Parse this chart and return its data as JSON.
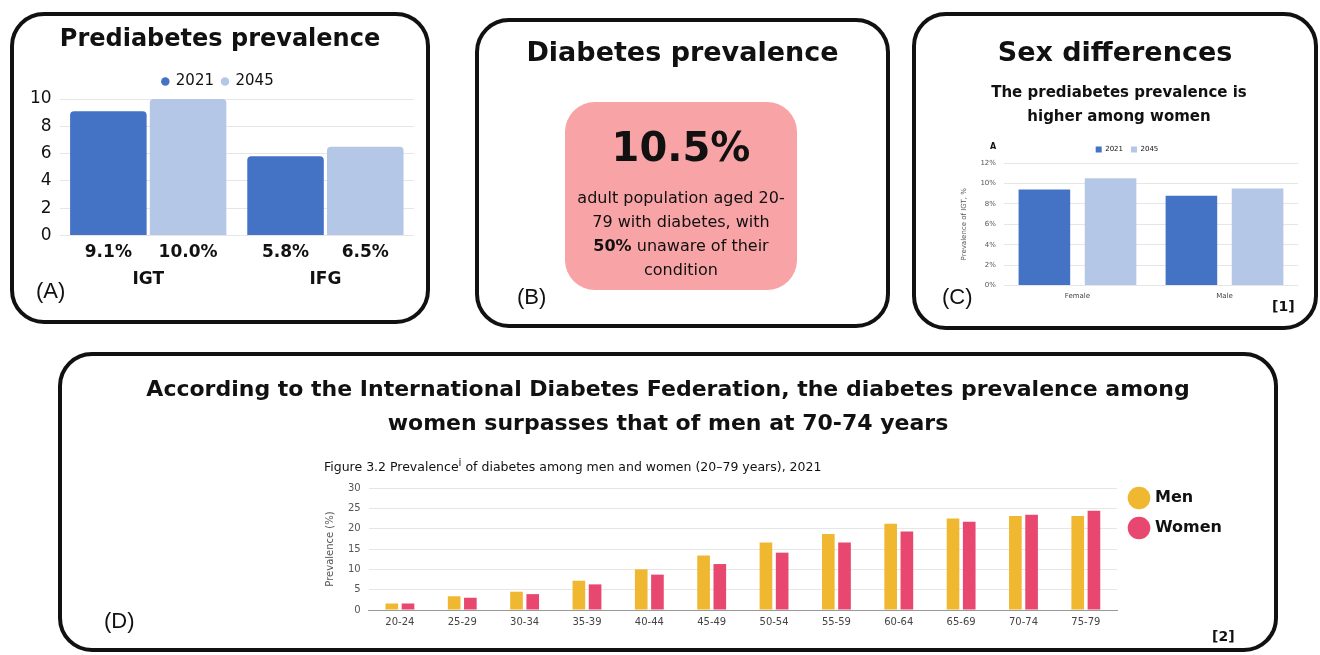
{
  "chart_data": [
    {
      "type": "bar",
      "title": "Prediabetes prevalence",
      "categories": [
        "IGT",
        "IFG"
      ],
      "series": [
        {
          "name": "2021",
          "color": "#4472c4",
          "values": [
            9.1,
            5.8
          ],
          "value_labels": [
            "9.1%",
            "5.8%"
          ]
        },
        {
          "name": "2045",
          "color": "#b4c7e7",
          "values": [
            10.0,
            6.5
          ],
          "value_labels": [
            "10.0%",
            "6.5%"
          ]
        }
      ],
      "ylim": [
        0,
        10
      ],
      "yticks": [
        0,
        2,
        4,
        6,
        8,
        10
      ],
      "grid": "y",
      "legend": "top",
      "annotations": [
        "(A)"
      ]
    },
    {
      "type": "other",
      "title": "Diabetes prevalence",
      "annotations": [
        "10.5%",
        "adult population aged 20-79 with diabetes, with",
        "50%",
        "unaware of their condition",
        "(B)"
      ]
    },
    {
      "type": "bar",
      "title": "Sex differences",
      "subtitle": "The prediabetes prevalence is higher among women",
      "ylabel": "Prevalence of IGT, %",
      "categories": [
        "Female",
        "Male"
      ],
      "series": [
        {
          "name": "2021",
          "color": "#4472c4",
          "values": [
            9.4,
            8.8
          ]
        },
        {
          "name": "2045",
          "color": "#b4c7e7",
          "values": [
            10.5,
            9.5
          ]
        }
      ],
      "ylim": [
        0,
        12
      ],
      "yticks": [
        {
          "value": 0,
          "label": "0%"
        },
        {
          "value": 2,
          "label": "2%"
        },
        {
          "value": 4,
          "label": "4%"
        },
        {
          "value": 6,
          "label": "6%"
        },
        {
          "value": 8,
          "label": "8%"
        },
        {
          "value": 10,
          "label": "10%"
        },
        {
          "value": 12,
          "label": "12%"
        }
      ],
      "grid": "y",
      "legend": "top",
      "annotations": [
        "A",
        "(C)",
        "[1]"
      ]
    },
    {
      "type": "bar",
      "title": "According to the International Diabetes Federation, the diabetes prevalence among women surpasses that of men at 70-74 years",
      "subtitle": "Figure 3.2 Prevalence$^{i}$ of diabetes among men and women (20–79 years), 2021",
      "ylabel": "Prevalence (%)",
      "categories": [
        "20-24",
        "25-29",
        "30-34",
        "35-39",
        "40-44",
        "45-49",
        "50-54",
        "55-59",
        "60-64",
        "65-69",
        "70-74",
        "75-79"
      ],
      "series": [
        {
          "name": "Men",
          "color": "#f0b731",
          "values": [
            1.6,
            3.4,
            4.5,
            7.2,
            10,
            13.4,
            16.6,
            18.7,
            21.2,
            22.5,
            23.1,
            23.1
          ]
        },
        {
          "name": "Women",
          "color": "#e8486f",
          "values": [
            1.6,
            3.0,
            3.9,
            6.3,
            8.7,
            11.3,
            14.1,
            16.6,
            19.3,
            21.7,
            23.4,
            24.4
          ]
        }
      ],
      "ylim": [
        0,
        30
      ],
      "yticks": [
        0,
        5,
        10,
        15,
        20,
        25,
        30
      ],
      "grid": "y",
      "legend": "right",
      "annotations": [
        "(D)",
        "[2]"
      ]
    }
  ]
}
